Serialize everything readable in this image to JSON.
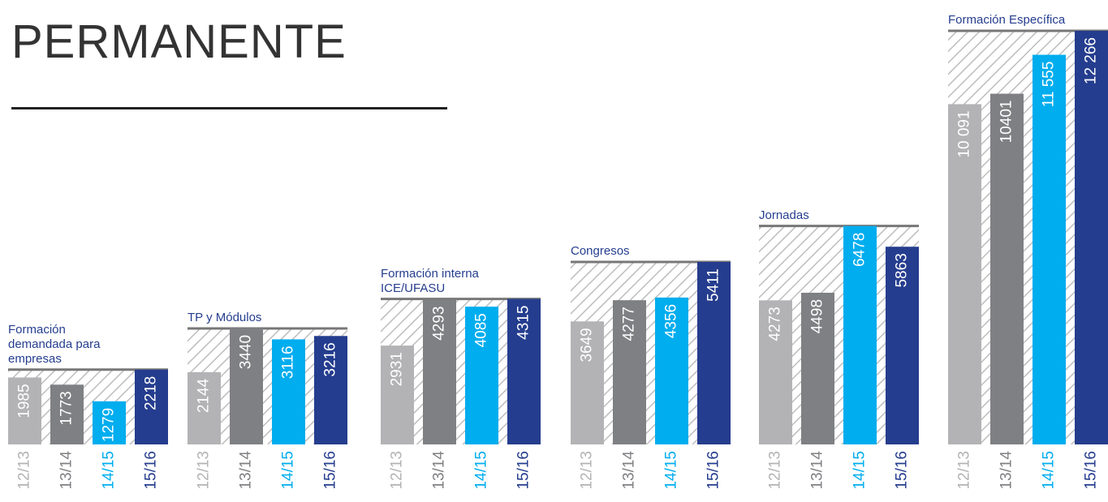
{
  "chart_data": {
    "type": "bar",
    "title": "PERMANENTE",
    "categories": [
      "Formación demandada para empresas",
      "TP y Módulos",
      "Formación interna ICE/UFASU",
      "Congresos",
      "Jornadas",
      "Formación Específica"
    ],
    "series": [
      {
        "name": "12/13",
        "color": "#b3b3b5",
        "values": [
          1985,
          2144,
          2931,
          3649,
          4273,
          10091
        ],
        "value_labels": [
          "1985",
          "2144",
          "2931",
          "3649",
          "4273",
          "10 091"
        ]
      },
      {
        "name": "13/14",
        "color": "#7f8083",
        "values": [
          1773,
          3440,
          4293,
          4277,
          4498,
          10401
        ]
      },
      {
        "name": "14/15",
        "color": "#00adee",
        "values": [
          1279,
          3116,
          4085,
          4356,
          6478,
          11555
        ],
        "value_labels": [
          "1279",
          "3116",
          "4085",
          "4356",
          "6478",
          "11 555"
        ]
      },
      {
        "name": "15/16",
        "color": "#253d8e",
        "values": [
          2218,
          3216,
          4315,
          5411,
          5863,
          12266
        ],
        "value_labels": [
          "2218",
          "3216",
          "4315",
          "5411",
          "5863",
          "12 266"
        ]
      }
    ]
  }
}
